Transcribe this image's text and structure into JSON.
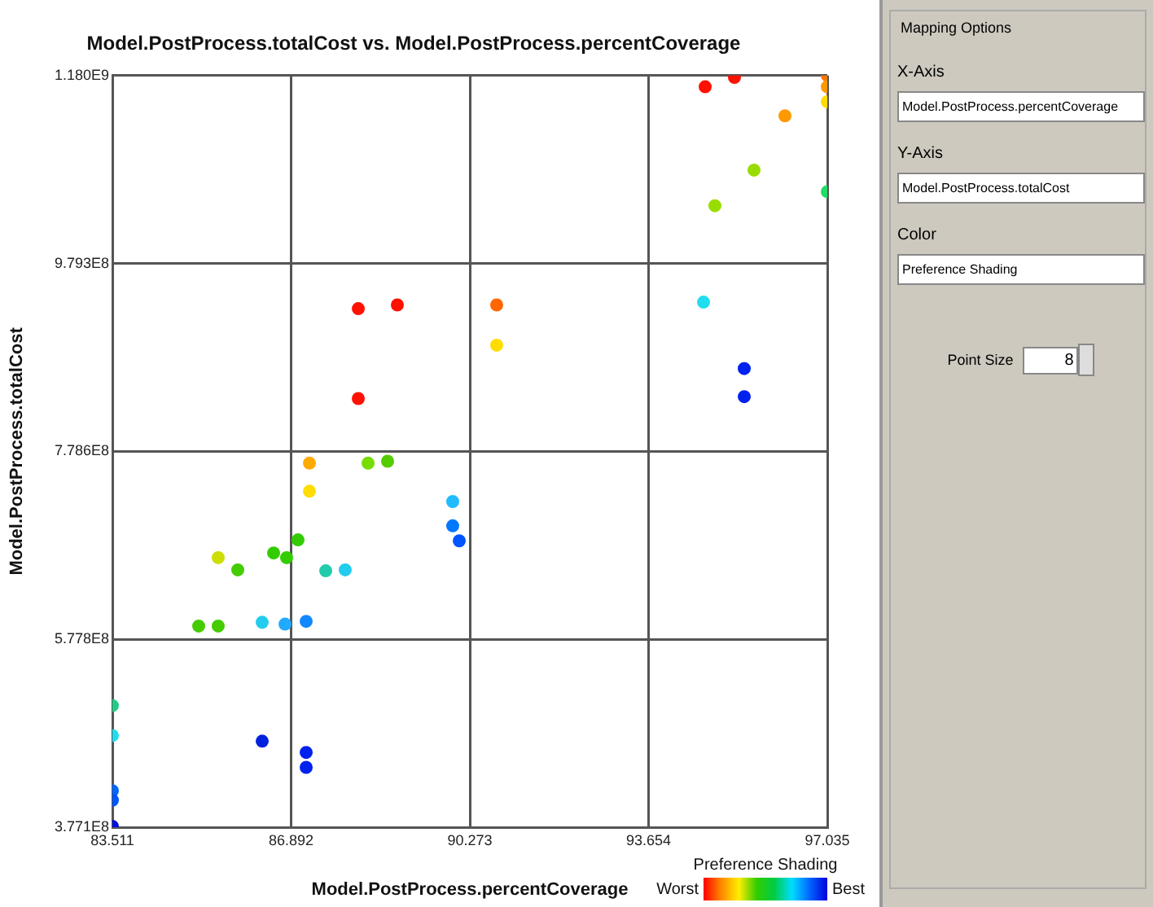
{
  "chart_data": {
    "type": "scatter",
    "title": "Model.PostProcess.totalCost vs. Model.PostProcess.percentCoverage",
    "xlabel": "Model.PostProcess.percentCoverage",
    "ylabel": "Model.PostProcess.totalCost",
    "clabel": "Preference Shading",
    "xlim": [
      83.511,
      97.035
    ],
    "xticks": [
      83.511,
      86.892,
      90.273,
      93.654,
      97.035
    ],
    "ylim": [
      377100000,
      1180000000
    ],
    "yticks": [
      {
        "value": 377100000,
        "label": "3.771E8"
      },
      {
        "value": 577800000,
        "label": "5.778E8"
      },
      {
        "value": 778600000,
        "label": "7.786E8"
      },
      {
        "value": 979300000,
        "label": "9.793E8"
      },
      {
        "value": 1180000000,
        "label": "1.180E9"
      }
    ],
    "grid": true,
    "legend": false,
    "marker": "circle",
    "x": [
      88.163,
      88.902,
      88.163,
      94.725,
      95.279,
      97.035,
      97.035,
      97.035,
      96.234,
      95.649,
      94.909,
      97.035,
      90.781,
      90.781,
      94.694,
      95.464,
      95.464,
      87.239,
      88.348,
      88.717,
      87.239,
      89.949,
      89.949,
      90.073,
      85.513,
      85.883,
      86.561,
      86.807,
      87.023,
      87.547,
      87.916,
      85.144,
      85.513,
      86.345,
      86.777,
      87.177,
      83.511,
      83.511,
      83.511,
      83.511,
      83.511,
      86.345,
      87.177,
      87.177
    ],
    "values": [
      931000000,
      935000000,
      835000000,
      1168000000,
      1178000000,
      1180000000,
      1168000000,
      1152000000,
      1137000000,
      1079000000,
      1041000000,
      1056000000,
      935000000,
      892000000,
      938000000,
      867000000,
      837000000,
      766000000,
      766000000,
      768000000,
      736000000,
      725000000,
      699000000,
      683000000,
      665000000,
      652000000,
      670000000,
      665000000,
      684000000,
      651000000,
      652000000,
      592000000,
      592000000,
      596000000,
      594000000,
      597000000,
      507000000,
      475000000,
      416000000,
      406000000,
      378000000,
      469000000,
      457000000,
      441000000
    ],
    "colors": [
      "#ff1100",
      "#ff1100",
      "#ff1100",
      "#ff1100",
      "#ff1100",
      "#ff7700",
      "#ff9900",
      "#ffdd00",
      "#ff9900",
      "#99dd00",
      "#99dd00",
      "#22dd66",
      "#ff6600",
      "#ffdd00",
      "#22ddee",
      "#0022ee",
      "#0022ee",
      "#ffaa00",
      "#77dd00",
      "#55cc00",
      "#ffdd00",
      "#22bbff",
      "#0077ff",
      "#0055ff",
      "#ccdd00",
      "#44cc00",
      "#33cc00",
      "#33cc00",
      "#33cc00",
      "#22ccaa",
      "#22ccee",
      "#44cc00",
      "#44cc00",
      "#22ccee",
      "#22aaff",
      "#1188ff",
      "#22cc88",
      "#22ddee",
      "#0066ff",
      "#0055ff",
      "#0011dd",
      "#0022dd",
      "#0022ee",
      "#0022ee"
    ],
    "annotations": [
      "Worst",
      "Best",
      "Mapping Options",
      "X-Axis",
      "Model.PostProcess.percentCoverage",
      "Y-Axis",
      "Model.PostProcess.totalCost",
      "Color",
      "Preference Shading",
      "Point Size",
      "8"
    ]
  }
}
